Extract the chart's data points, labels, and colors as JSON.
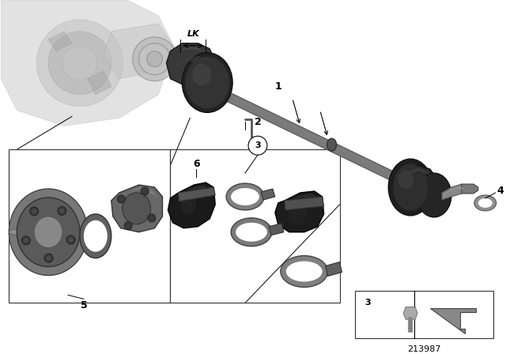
{
  "background_color": "#ffffff",
  "part_number": "213987",
  "figsize": [
    6.4,
    4.48
  ],
  "dpi": 100,
  "shaft_color": "#888888",
  "boot_color": "#2a2a2a",
  "metal_color": "#909090",
  "clamp_color": "#707070",
  "diff_color": "#c0c0c0",
  "label_fontsize": 9,
  "lk_fontsize": 8
}
